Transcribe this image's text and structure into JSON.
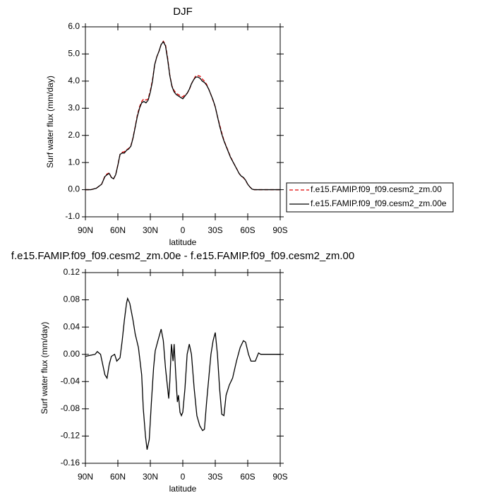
{
  "chart_data": [
    {
      "type": "line",
      "title": "DJF",
      "x_label": "latitude",
      "y_label": "Surf water flux (mm/day)",
      "xlim": [
        90,
        -90
      ],
      "ylim": [
        -1,
        6
      ],
      "xticks": [
        {
          "value": 90,
          "label": "90N"
        },
        {
          "value": 60,
          "label": "60N"
        },
        {
          "value": 30,
          "label": "30N"
        },
        0,
        {
          "value": -30,
          "label": "30S"
        },
        {
          "value": -60,
          "label": "60S"
        },
        {
          "value": -90,
          "label": "90S"
        }
      ],
      "yticks": [
        {
          "value": -1,
          "label": "-1.0"
        },
        {
          "value": 0,
          "label": "0.0"
        },
        {
          "value": 1,
          "label": "1.0"
        },
        {
          "value": 2,
          "label": "2.0"
        },
        {
          "value": 3,
          "label": "3.0"
        },
        {
          "value": 4,
          "label": "4.0"
        },
        {
          "value": 5,
          "label": "5.0"
        },
        {
          "value": 6,
          "label": "6.0"
        }
      ],
      "legend": "right",
      "x": [
        90,
        85,
        80,
        75,
        72,
        70,
        68,
        66,
        64,
        62,
        60,
        58,
        56,
        54,
        52,
        50,
        48,
        46,
        44,
        42,
        40,
        38,
        36,
        34,
        32,
        30,
        28,
        26,
        24,
        22,
        20,
        18,
        16,
        14,
        12,
        10,
        8,
        6,
        4,
        2,
        0,
        -2,
        -4,
        -6,
        -8,
        -10,
        -12,
        -14,
        -16,
        -18,
        -20,
        -22,
        -24,
        -26,
        -28,
        -30,
        -32,
        -34,
        -36,
        -38,
        -40,
        -42,
        -44,
        -46,
        -48,
        -50,
        -52,
        -54,
        -56,
        -58,
        -60,
        -62,
        -64,
        -66,
        -70,
        -80,
        -90
      ],
      "series": [
        {
          "name": "f.e15.FAMIP.f09_f09.cesm2_zm.00",
          "color": "#e00000",
          "style": "dashed",
          "values": [
            0,
            0,
            0.05,
            0.2,
            0.5,
            0.58,
            0.62,
            0.45,
            0.4,
            0.55,
            0.92,
            1.3,
            1.38,
            1.4,
            1.47,
            1.52,
            1.62,
            1.92,
            2.32,
            2.75,
            3.05,
            3.25,
            3.35,
            3.3,
            3.35,
            3.65,
            4.05,
            4.6,
            4.9,
            5.1,
            5.35,
            5.47,
            5.35,
            4.85,
            4.22,
            3.82,
            3.65,
            3.55,
            3.5,
            3.45,
            3.42,
            3.5,
            3.55,
            3.68,
            3.9,
            4.05,
            4.2,
            4.2,
            4.18,
            4.08,
            4.0,
            3.88,
            3.7,
            3.5,
            3.28,
            3.05,
            2.7,
            2.4,
            2.1,
            1.82,
            1.62,
            1.42,
            1.22,
            1.06,
            0.9,
            0.76,
            0.6,
            0.5,
            0.44,
            0.34,
            0.2,
            0.1,
            0.02,
            0,
            0,
            0,
            0
          ]
        },
        {
          "name": "f.e15.FAMIP.f09_f09.cesm2_zm.00e",
          "color": "#000000",
          "style": "solid",
          "values": [
            0,
            0,
            0.05,
            0.2,
            0.48,
            0.55,
            0.6,
            0.45,
            0.4,
            0.55,
            0.9,
            1.3,
            1.35,
            1.35,
            1.45,
            1.5,
            1.6,
            1.9,
            2.3,
            2.7,
            3.0,
            3.2,
            3.25,
            3.2,
            3.3,
            3.6,
            4.0,
            4.6,
            4.9,
            5.1,
            5.35,
            5.45,
            5.3,
            4.8,
            4.2,
            3.8,
            3.6,
            3.5,
            3.45,
            3.4,
            3.35,
            3.45,
            3.55,
            3.7,
            3.9,
            4.05,
            4.15,
            4.15,
            4.1,
            4.0,
            3.95,
            3.85,
            3.7,
            3.5,
            3.3,
            3.05,
            2.7,
            2.35,
            2.05,
            1.8,
            1.6,
            1.4,
            1.2,
            1.05,
            0.9,
            0.75,
            0.6,
            0.5,
            0.45,
            0.35,
            0.2,
            0.1,
            0.02,
            0,
            0,
            0,
            0
          ]
        }
      ]
    },
    {
      "type": "line",
      "title": "f.e15.FAMIP.f09_f09.cesm2_zm.00e - f.e15.FAMIP.f09_f09.cesm2_zm.00",
      "x_label": "latitude",
      "y_label": "Surf water flux (mm/day)",
      "xlim": [
        90,
        -90
      ],
      "ylim": [
        -0.16,
        0.12
      ],
      "xticks": [
        {
          "value": 90,
          "label": "90N"
        },
        {
          "value": 60,
          "label": "60N"
        },
        {
          "value": 30,
          "label": "30N"
        },
        0,
        {
          "value": -30,
          "label": "30S"
        },
        {
          "value": -60,
          "label": "60S"
        },
        {
          "value": -90,
          "label": "90S"
        }
      ],
      "yticks": [
        -0.16,
        -0.12,
        -0.08,
        -0.04,
        {
          "value": 0,
          "label": "0.00"
        },
        0.04,
        0.08,
        0.12
      ],
      "x": [
        90,
        81,
        79,
        76,
        72,
        70,
        68,
        66,
        63,
        61,
        58,
        56,
        54,
        52,
        51,
        49,
        46,
        44,
        41,
        38,
        36.5,
        34.5,
        33,
        31,
        29,
        27,
        25.5,
        23,
        20,
        18,
        16,
        14,
        13,
        12,
        10.5,
        9,
        8,
        6.5,
        5,
        4,
        2.6,
        1.3,
        0,
        -2,
        -4,
        -6,
        -8,
        -10.5,
        -13,
        -15.7,
        -18.3,
        -20,
        -22,
        -24,
        -26,
        -28,
        -30,
        -32,
        -34,
        -36,
        -38,
        -40,
        -43,
        -46,
        -49.6,
        -53,
        -56,
        -58,
        -60.7,
        -63,
        -67,
        -70,
        -72,
        -79,
        -90
      ],
      "series": [
        {
          "color": "#000000",
          "style": "solid",
          "values": [
            -0.003,
            0,
            0.004,
            0,
            -0.03,
            -0.035,
            -0.015,
            -0.003,
            0,
            -0.01,
            -0.005,
            0.02,
            0.05,
            0.075,
            0.082,
            0.075,
            0.05,
            0.03,
            0.01,
            -0.03,
            -0.08,
            -0.12,
            -0.14,
            -0.125,
            -0.07,
            -0.02,
            0.005,
            0.02,
            0.037,
            0.02,
            -0.02,
            -0.05,
            -0.065,
            -0.04,
            0.015,
            -0.01,
            0.015,
            -0.03,
            -0.07,
            -0.06,
            -0.085,
            -0.09,
            -0.085,
            -0.05,
            0,
            0.015,
            0,
            -0.05,
            -0.09,
            -0.105,
            -0.112,
            -0.11,
            -0.07,
            -0.035,
            0,
            0.02,
            0.032,
            0,
            -0.05,
            -0.088,
            -0.09,
            -0.06,
            -0.045,
            -0.035,
            -0.01,
            0.01,
            0.02,
            0.018,
            0,
            -0.01,
            -0.01,
            0.002,
            0,
            0,
            0
          ]
        }
      ]
    }
  ]
}
